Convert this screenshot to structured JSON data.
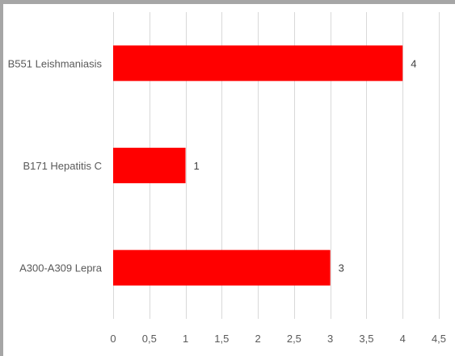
{
  "chart_data": {
    "type": "bar",
    "orientation": "horizontal",
    "categories": [
      "B551 Leishmaniasis",
      "B171 Hepatitis C",
      "A300-A309 Lepra"
    ],
    "values": [
      4,
      1,
      3
    ],
    "data_labels": [
      "4",
      "1",
      "3"
    ],
    "xlim": [
      0,
      4.5
    ],
    "x_ticks": [
      "0",
      "0,5",
      "1",
      "1,5",
      "2",
      "2,5",
      "3",
      "3,5",
      "4",
      "4,5"
    ],
    "x_tick_values": [
      0,
      0.5,
      1,
      1.5,
      2,
      2.5,
      3,
      3.5,
      4,
      4.5
    ],
    "grid": "vertical",
    "legend": "none",
    "title": "",
    "xlabel": "",
    "ylabel": "",
    "bar_color": "#ff0000",
    "grid_color": "#d9d9d9"
  }
}
